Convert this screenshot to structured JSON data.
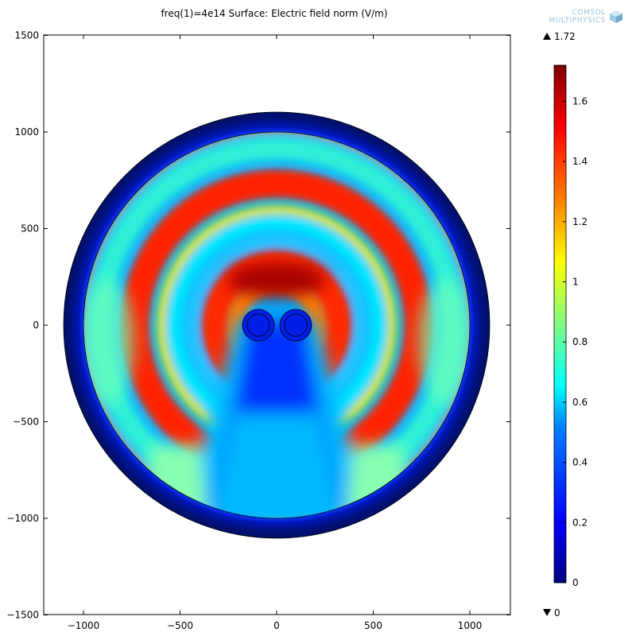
{
  "title": "freq(1)=4e14  Surface: Electric field norm (V/m)",
  "logo": {
    "line1": "COMSOL",
    "line2": "MULTIPHYSICS",
    "icon": "comsol-cube-icon"
  },
  "chart_data": {
    "type": "heatmap",
    "title": "freq(1)=4e14  Surface: Electric field norm (V/m)",
    "quantity": "Electric field norm",
    "unit": "V/m",
    "frequency": "4e14",
    "xlim": [
      -1230,
      1200
    ],
    "ylim": [
      -1510,
      1510
    ],
    "x_ticks": [
      -1000,
      -500,
      0,
      500,
      1000
    ],
    "y_ticks": [
      -1500,
      -1000,
      -500,
      0,
      500,
      1000,
      1500
    ],
    "x_tick_labels": [
      "−1000",
      "−500",
      "0",
      "500",
      "1000"
    ],
    "y_tick_labels": [
      "−1500",
      "−1000",
      "−500",
      "0",
      "500",
      "1000",
      "1500"
    ],
    "geometry": {
      "outer_circle_radius": 1100,
      "inner_circle_radius": 1000,
      "cylinders": [
        {
          "center": [
            -95,
            0
          ],
          "inner_radius": 65,
          "outer_radius": 85
        },
        {
          "center": [
            95,
            0
          ],
          "inner_radius": 65,
          "outer_radius": 85
        }
      ]
    },
    "colorbar": {
      "colormap": "rainbow",
      "min": 0,
      "max": 1.72,
      "ticks": [
        0,
        0.2,
        0.4,
        0.6,
        0.8,
        1,
        1.2,
        1.4,
        1.6
      ],
      "tick_labels": [
        "0",
        "0.2",
        "0.4",
        "0.6",
        "0.8",
        "1",
        "1.2",
        "1.4",
        "1.6"
      ],
      "max_label": "1.72",
      "min_label": "0"
    },
    "field_features": {
      "max_value_near": [
        0,
        230
      ],
      "bands_above_center": [
        {
          "radius": 230,
          "value": 1.72
        },
        {
          "radius": 420,
          "value": 0.55
        },
        {
          "radius": 570,
          "value": 1.5
        },
        {
          "radius": 720,
          "value": 0.6
        },
        {
          "radius": 900,
          "value": 1.35
        }
      ],
      "shadow_region_below_center_value": 0.25,
      "cladding_value": 0.1
    }
  }
}
